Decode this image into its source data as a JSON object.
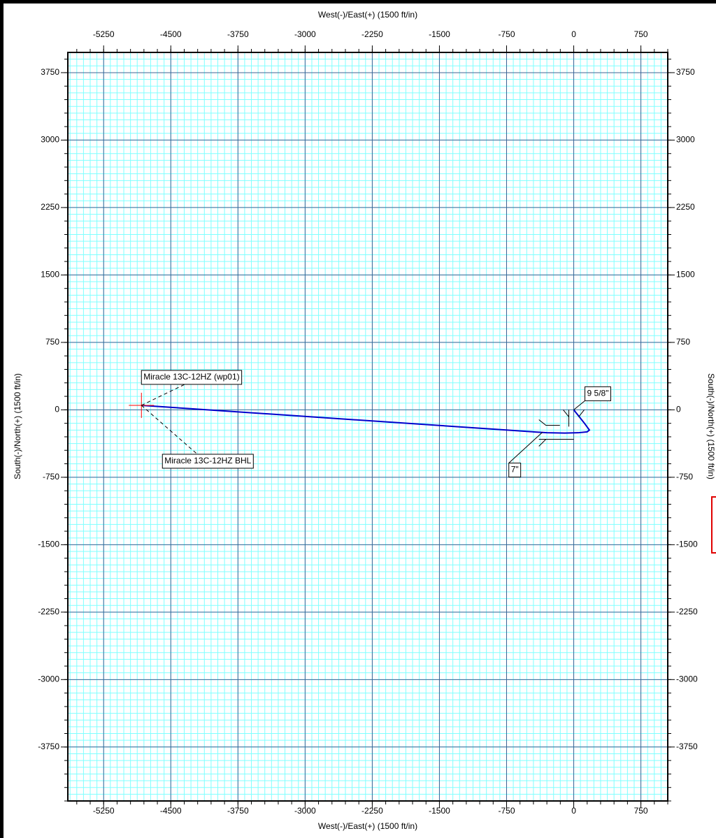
{
  "chart_data": {
    "type": "line",
    "xlabel": "West(-)/East(+) (1500 ft/in)",
    "ylabel": "South(-)/North(+) (1500 ft/in)",
    "xlim": [
      -5650,
      1050
    ],
    "ylim": [
      -4350,
      3975
    ],
    "xticks": [
      -5250,
      -4500,
      -3750,
      -3000,
      -2250,
      -1500,
      -750,
      0,
      750
    ],
    "yticks": [
      -3750,
      -3000,
      -2250,
      -1500,
      -750,
      0,
      750,
      1500,
      2250,
      3000,
      3750
    ],
    "grid": true,
    "path": {
      "color": "#0000cc",
      "x": [
        0,
        60,
        120,
        175,
        150,
        50,
        -100,
        -300,
        -4828
      ],
      "y": [
        0,
        -75,
        -150,
        -225,
        -245,
        -255,
        -258,
        -255,
        50
      ]
    },
    "target": {
      "x": -4828,
      "y": 50,
      "color": "#ff0000"
    },
    "annotations": [
      {
        "text": "Miracle 13C-12HZ (wp01)",
        "x": -4828,
        "y": 50,
        "color": "#0000ff"
      },
      {
        "text": "Miracle 13C-12HZ BHL",
        "x": -4828,
        "y": 50,
        "color": "#000000"
      },
      {
        "text": "9 5/8\"",
        "x": 0,
        "y": 0,
        "color": "#000000"
      },
      {
        "text": "7\"",
        "x": -350,
        "y": -250,
        "color": "#000000"
      }
    ]
  }
}
